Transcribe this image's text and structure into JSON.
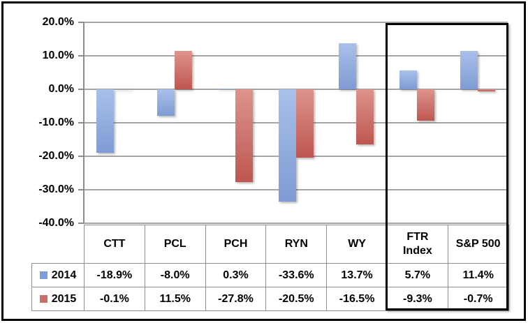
{
  "chart_data": {
    "type": "bar",
    "title": "",
    "xlabel": "",
    "ylabel": "",
    "ylim": [
      -40,
      20
    ],
    "grid": true,
    "legend_position": "table-left",
    "y_ticks": [
      20,
      10,
      0,
      -10,
      -20,
      -30,
      -40
    ],
    "y_tick_labels": [
      "20.0%",
      "10.0%",
      "0.0%",
      "-10.0%",
      "-20.0%",
      "-30.0%",
      "-40.0%"
    ],
    "categories": [
      "CTT",
      "PCL",
      "PCH",
      "RYN",
      "WY",
      "FTR\nIndex",
      "S&P 500"
    ],
    "series": [
      {
        "name": "2014",
        "values": [
          -18.9,
          -8.0,
          0.3,
          -33.6,
          13.7,
          5.7,
          11.4
        ],
        "display": [
          "-18.9%",
          "-8.0%",
          "0.3%",
          "-33.6%",
          "13.7%",
          "5.7%",
          "11.4%"
        ],
        "color_top": "#a9c0ea",
        "color_bottom": "#7e9cd3",
        "swatch_color": "#7e9ed8"
      },
      {
        "name": "2015",
        "values": [
          -0.1,
          11.5,
          -27.8,
          -20.5,
          -16.5,
          -9.3,
          -0.7
        ],
        "display": [
          "-0.1%",
          "11.5%",
          "-27.8%",
          "-20.5%",
          "-16.5%",
          "-9.3%",
          "-0.7%"
        ],
        "color_top": "#dd948c",
        "color_bottom": "#bd5750",
        "swatch_color": "#c96e66"
      }
    ],
    "annotations": {
      "highlight_box_categories": [
        "FTR\nIndex",
        "S&P 500"
      ]
    },
    "colors": {
      "gridline": "#a6a6a6",
      "axis": "#8c8c8c",
      "table_border": "#8f8f8f",
      "highlight_border": "#000000"
    }
  }
}
